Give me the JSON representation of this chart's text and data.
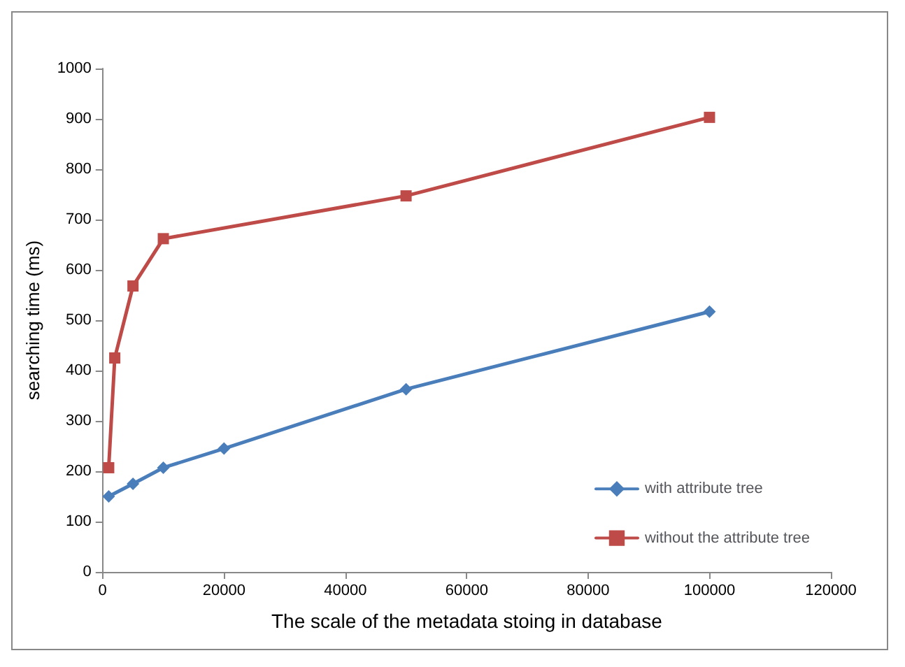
{
  "chart_data": {
    "type": "line",
    "xlabel": "The scale of the metadata stoing in database",
    "ylabel": "searching time (ms)",
    "series": [
      {
        "name": "with attribute tree",
        "color": "#4a7ebb",
        "marker": "diamond",
        "x": [
          1000,
          5000,
          10000,
          20000,
          50000,
          100000
        ],
        "values": [
          150,
          175,
          207,
          245,
          363,
          517
        ]
      },
      {
        "name": "without the attribute tree",
        "color": "#be4b48",
        "marker": "square",
        "x": [
          1000,
          2000,
          5000,
          10000,
          50000,
          100000
        ],
        "values": [
          207,
          425,
          568,
          662,
          747,
          903
        ]
      }
    ],
    "xlim": [
      0,
      120000
    ],
    "xticks": [
      0,
      20000,
      40000,
      60000,
      80000,
      100000,
      120000
    ],
    "ylim": [
      0,
      1000
    ],
    "yticks": [
      0,
      100,
      200,
      300,
      400,
      500,
      600,
      700,
      800,
      900,
      1000
    ],
    "grid": false,
    "legend": "right",
    "line_style": "solid"
  }
}
